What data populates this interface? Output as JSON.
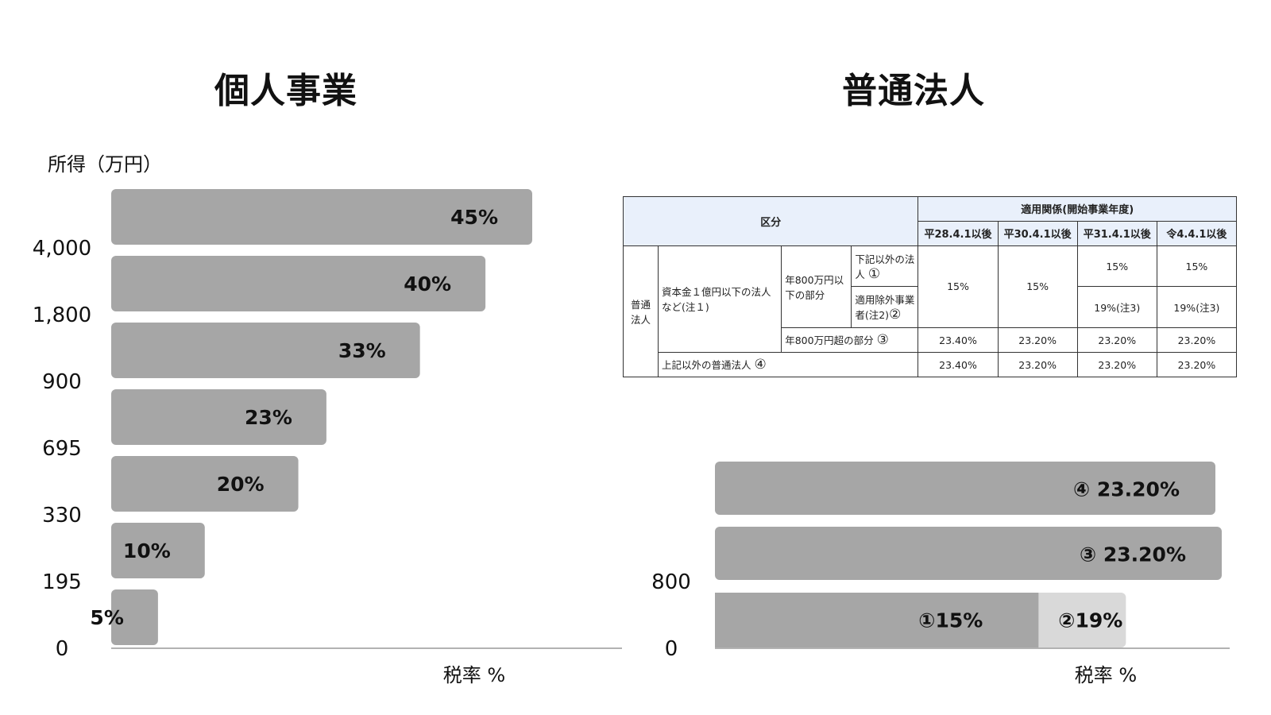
{
  "titles": {
    "left": "個人事業",
    "right": "普通法人"
  },
  "colors": {
    "bar": "#a6a6a6",
    "bar_light": "#d9d9d9",
    "axis": "#999999",
    "text": "#111111"
  },
  "table": {
    "header": {
      "kubun": "区分",
      "tekiyou": "適用関係(開始事業年度)",
      "periods": [
        "平28.4.1以後",
        "平30.4.1以後",
        "平31.4.1以後",
        "令4.4.1以後"
      ]
    },
    "futsu_hojin": "普通\n法人",
    "shihonkin": "資本金１億円以下の法人など(注１)",
    "under800": "年800万円以下の部分",
    "kaki_igai": "下記以外の法人",
    "mark1": "①",
    "tekiyou_jogai": "適用除外事業者(注2)",
    "mark2": "②",
    "over800": "年800万円超の部分",
    "mark3": "③",
    "joki_igai": "上記以外の普通法人",
    "mark4": "④",
    "row1": [
      "15%",
      "15%",
      "15%",
      "15%"
    ],
    "row2": [
      "19%(注3)",
      "19%(注3)"
    ],
    "row3": [
      "23.40%",
      "23.20%",
      "23.20%",
      "23.20%"
    ],
    "row4": [
      "23.40%",
      "23.20%",
      "23.20%",
      "23.20%"
    ]
  },
  "chart_data": [
    {
      "type": "bar",
      "orientation": "horizontal",
      "title": "個人事業",
      "ylabel": "所得（万円）",
      "xlabel": "税率 %",
      "y_ticks": [
        "0",
        "195",
        "330",
        "695",
        "900",
        "1,800",
        "4,000"
      ],
      "bands": [
        "0-195",
        "195-330",
        "330-695",
        "695-900",
        "900-1,800",
        "1,800-4,000",
        "4,000-"
      ],
      "values": [
        5,
        10,
        20,
        23,
        33,
        40,
        45
      ],
      "labels": [
        "5%",
        "10%",
        "20%",
        "23%",
        "33%",
        "40%",
        "45%"
      ],
      "xlim": [
        0,
        60
      ]
    },
    {
      "type": "bar",
      "orientation": "horizontal",
      "title": "普通法人",
      "xlabel": "税率 %",
      "y_ticks": [
        "0",
        "800"
      ],
      "rows": [
        {
          "segments": [
            {
              "value": 15,
              "label": "①15%"
            },
            {
              "value": 19,
              "label": "②19%"
            }
          ]
        },
        {
          "segments": [
            {
              "value": 23.2,
              "label": "③  23.20%"
            }
          ]
        },
        {
          "segments": [
            {
              "value": 23.2,
              "label": "④  23.20%"
            }
          ]
        }
      ],
      "xlim": [
        0,
        23.8
      ]
    }
  ]
}
